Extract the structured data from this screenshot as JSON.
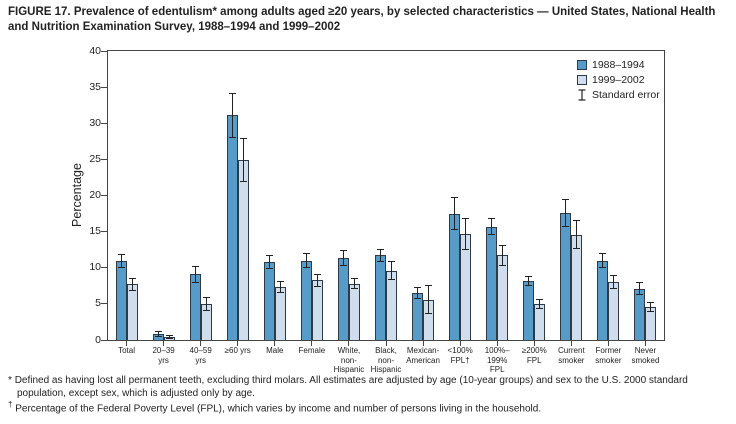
{
  "title": "FIGURE 17. Prevalence of edentulism* among adults aged ≥20 years, by selected characteristics — United States, National Health and Nutrition Examination Survey, 1988–1994 and 1999–2002",
  "legend": {
    "series1_label": "1988–1994",
    "series2_label": "1999–2002",
    "error_label": "Standard error"
  },
  "chart_data": {
    "type": "bar",
    "ylabel": "Percentage",
    "xlabel": "",
    "ylim": [
      0,
      40
    ],
    "yticks": [
      0,
      5,
      10,
      15,
      20,
      25,
      30,
      35,
      40
    ],
    "grid": false,
    "legend_position": "top-right",
    "categories": [
      "Total",
      "20–39\nyrs",
      "40–59\nyrs",
      "≥60 yrs",
      "Male",
      "Female",
      "White,\nnon-\nHispanic",
      "Black,\nnon-\nHispanic",
      "Mexican-\nAmerican",
      "<100%\nFPL†",
      "100%–\n199%\nFPL",
      "≥200%\nFPL",
      "Current\nsmoker",
      "Former\nsmoker",
      "Never\nsmoked"
    ],
    "series": [
      {
        "name": "1988–1994",
        "color": "#579bc9",
        "values": [
          10.9,
          0.8,
          9.1,
          31.1,
          10.8,
          11.0,
          11.4,
          11.7,
          6.5,
          17.5,
          15.7,
          8.2,
          17.6,
          11.0,
          7.1
        ],
        "standard_errors": [
          1.0,
          0.4,
          1.2,
          3.1,
          1.0,
          1.0,
          1.1,
          0.9,
          0.8,
          2.3,
          1.2,
          0.7,
          1.9,
          1.1,
          0.9
        ]
      },
      {
        "name": "1999–2002",
        "color": "#cfdded",
        "values": [
          7.7,
          0.4,
          5.0,
          24.9,
          7.3,
          8.3,
          7.8,
          9.6,
          5.6,
          14.7,
          11.7,
          5.0,
          14.6,
          8.0,
          4.6
        ],
        "standard_errors": [
          0.9,
          0.3,
          1.0,
          3.1,
          0.8,
          0.9,
          0.8,
          1.3,
          2.0,
          2.2,
          1.5,
          0.7,
          2.0,
          1.0,
          0.7
        ]
      }
    ]
  },
  "footnotes": [
    {
      "marker": "*",
      "text": "Defined as having lost all permanent teeth, excluding third molars. All estimates are adjusted by age (10-year groups) and sex to the U.S. 2000 standard population, except sex, which is adjusted only by age."
    },
    {
      "marker": "†",
      "text": "Percentage of the Federal Poverty Level (FPL), which varies by income and number of persons living in the household."
    }
  ]
}
